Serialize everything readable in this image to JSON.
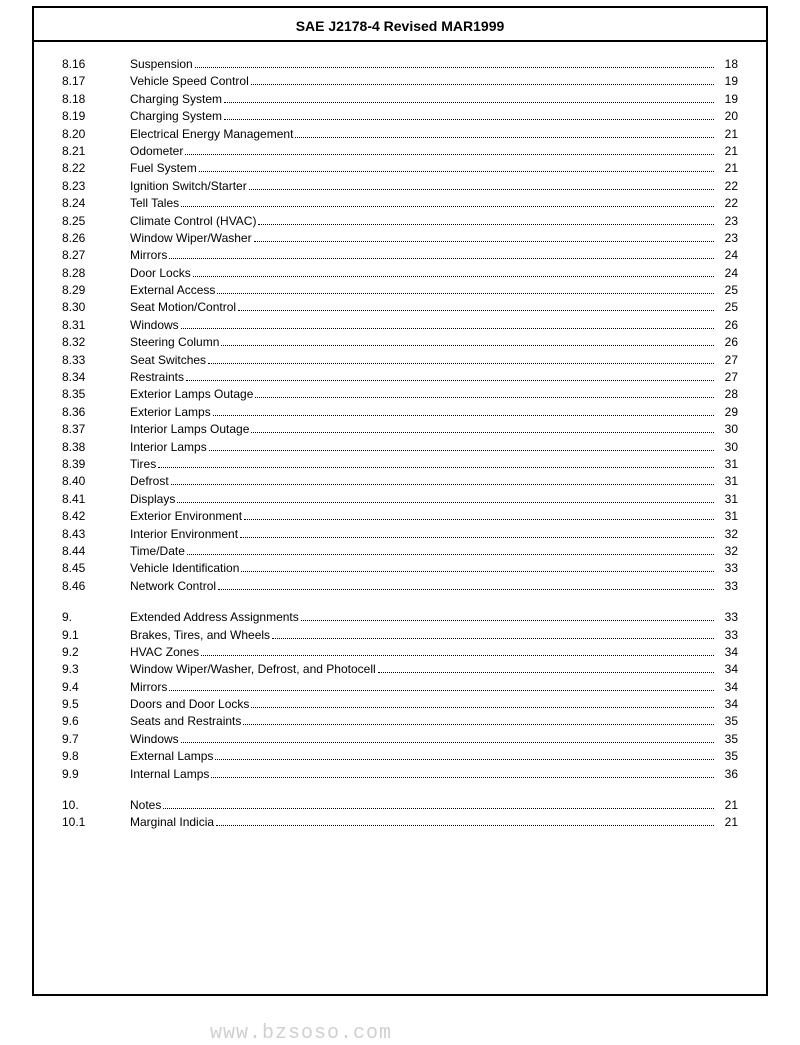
{
  "header": {
    "title": "SAE J2178-4 Revised MAR1999"
  },
  "watermark": "www.bzsoso.com",
  "groups": [
    [
      {
        "sec": "8.16",
        "title": "Suspension",
        "pg": "18"
      },
      {
        "sec": "8.17",
        "title": "Vehicle Speed Control",
        "pg": "19"
      },
      {
        "sec": "8.18",
        "title": "Charging System",
        "pg": "19"
      },
      {
        "sec": "8.19",
        "title": "Charging System",
        "pg": "20"
      },
      {
        "sec": "8.20",
        "title": "Electrical Energy Management",
        "pg": "21"
      },
      {
        "sec": "8.21",
        "title": "Odometer",
        "pg": "21"
      },
      {
        "sec": "8.22",
        "title": "Fuel System",
        "pg": "21"
      },
      {
        "sec": "8.23",
        "title": "Ignition Switch/Starter",
        "pg": "22"
      },
      {
        "sec": "8.24",
        "title": "Tell Tales",
        "pg": "22"
      },
      {
        "sec": "8.25",
        "title": "Climate Control (HVAC)",
        "pg": "23"
      },
      {
        "sec": "8.26",
        "title": "Window Wiper/Washer",
        "pg": "23"
      },
      {
        "sec": "8.27",
        "title": "Mirrors",
        "pg": "24"
      },
      {
        "sec": "8.28",
        "title": "Door Locks",
        "pg": "24"
      },
      {
        "sec": "8.29",
        "title": "External Access",
        "pg": "25"
      },
      {
        "sec": "8.30",
        "title": "Seat Motion/Control",
        "pg": "25"
      },
      {
        "sec": "8.31",
        "title": "Windows",
        "pg": "26"
      },
      {
        "sec": "8.32",
        "title": "Steering Column",
        "pg": "26"
      },
      {
        "sec": "8.33",
        "title": "Seat Switches",
        "pg": "27"
      },
      {
        "sec": "8.34",
        "title": "Restraints",
        "pg": "27"
      },
      {
        "sec": "8.35",
        "title": "Exterior Lamps Outage",
        "pg": "28"
      },
      {
        "sec": "8.36",
        "title": "Exterior Lamps",
        "pg": "29"
      },
      {
        "sec": "8.37",
        "title": "Interior Lamps Outage",
        "pg": "30"
      },
      {
        "sec": "8.38",
        "title": "Interior Lamps",
        "pg": "30"
      },
      {
        "sec": "8.39",
        "title": "Tires",
        "pg": "31"
      },
      {
        "sec": "8.40",
        "title": "Defrost",
        "pg": "31"
      },
      {
        "sec": "8.41",
        "title": "Displays",
        "pg": "31"
      },
      {
        "sec": "8.42",
        "title": "Exterior Environment",
        "pg": "31"
      },
      {
        "sec": "8.43",
        "title": "Interior Environment",
        "pg": "32"
      },
      {
        "sec": "8.44",
        "title": "Time/Date",
        "pg": "32"
      },
      {
        "sec": "8.45",
        "title": "Vehicle Identification",
        "pg": "33"
      },
      {
        "sec": "8.46",
        "title": "Network Control",
        "pg": "33"
      }
    ],
    [
      {
        "sec": "9.",
        "title": "Extended Address Assignments",
        "pg": "33"
      },
      {
        "sec": "9.1",
        "title": "Brakes, Tires, and Wheels",
        "pg": "33"
      },
      {
        "sec": "9.2",
        "title": "HVAC Zones",
        "pg": "34"
      },
      {
        "sec": "9.3",
        "title": "Window Wiper/Washer, Defrost, and Photocell",
        "pg": "34"
      },
      {
        "sec": "9.4",
        "title": "Mirrors",
        "pg": "34"
      },
      {
        "sec": "9.5",
        "title": "Doors and Door Locks",
        "pg": "34"
      },
      {
        "sec": "9.6",
        "title": "Seats and Restraints",
        "pg": "35"
      },
      {
        "sec": "9.7",
        "title": "Windows",
        "pg": "35"
      },
      {
        "sec": "9.8",
        "title": "External Lamps",
        "pg": "35"
      },
      {
        "sec": "9.9",
        "title": "Internal Lamps",
        "pg": "36"
      }
    ],
    [
      {
        "sec": "10.",
        "title": "Notes",
        "pg": "21"
      },
      {
        "sec": "10.1",
        "title": "Marginal Indicia",
        "pg": "21"
      }
    ]
  ]
}
